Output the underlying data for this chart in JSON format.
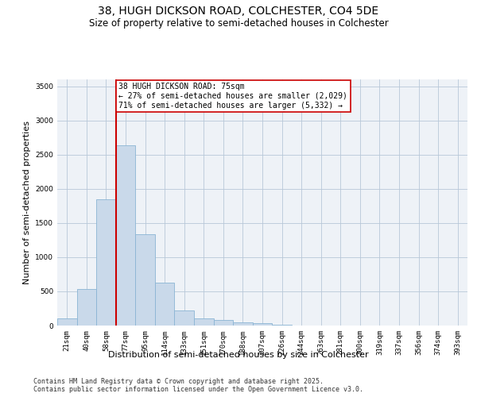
{
  "title_line1": "38, HUGH DICKSON ROAD, COLCHESTER, CO4 5DE",
  "title_line2": "Size of property relative to semi-detached houses in Colchester",
  "xlabel": "Distribution of semi-detached houses by size in Colchester",
  "ylabel": "Number of semi-detached properties",
  "categories": [
    "21sqm",
    "40sqm",
    "58sqm",
    "77sqm",
    "95sqm",
    "114sqm",
    "133sqm",
    "151sqm",
    "170sqm",
    "188sqm",
    "207sqm",
    "226sqm",
    "244sqm",
    "263sqm",
    "281sqm",
    "300sqm",
    "319sqm",
    "337sqm",
    "356sqm",
    "374sqm",
    "393sqm"
  ],
  "values": [
    100,
    530,
    1850,
    2640,
    1330,
    630,
    220,
    110,
    80,
    50,
    30,
    10,
    5,
    2,
    1,
    0,
    0,
    0,
    0,
    0,
    0
  ],
  "bar_color": "#c9d9ea",
  "bar_edge_color": "#8ab4d4",
  "ylim": [
    0,
    3600
  ],
  "yticks": [
    0,
    500,
    1000,
    1500,
    2000,
    2500,
    3000,
    3500
  ],
  "red_line_x": 3.0,
  "annotation_text_line1": "38 HUGH DICKSON ROAD: 75sqm",
  "annotation_text_line2": "← 27% of semi-detached houses are smaller (2,029)",
  "annotation_text_line3": "71% of semi-detached houses are larger (5,332) →",
  "annotation_box_color": "#ffffff",
  "annotation_box_edge": "#cc0000",
  "red_line_color": "#cc0000",
  "background_color": "#eef2f7",
  "footer_line1": "Contains HM Land Registry data © Crown copyright and database right 2025.",
  "footer_line2": "Contains public sector information licensed under the Open Government Licence v3.0.",
  "title_fontsize": 10,
  "subtitle_fontsize": 8.5,
  "axis_label_fontsize": 8,
  "tick_fontsize": 6.5,
  "annotation_fontsize": 7,
  "footer_fontsize": 6
}
